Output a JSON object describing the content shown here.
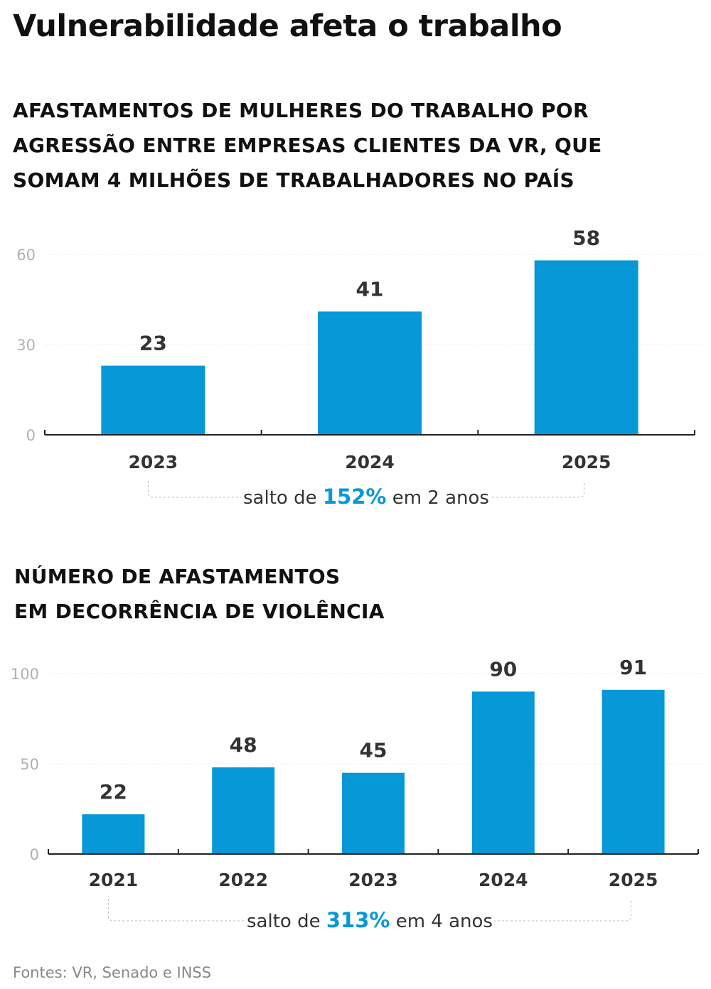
{
  "title": "Vulnerabilidade afeta o trabalho",
  "source": "Fontes: VR, Senado e INSS",
  "colors": {
    "bar": "#0798d8",
    "highlight": "#0798d8",
    "axis": "#222222",
    "tick_label": "#b0b0b0",
    "label": "#333333"
  },
  "chart_data": [
    {
      "type": "bar",
      "title_lines": [
        "AFASTAMENTOS DE MULHERES DO TRABALHO POR",
        "AGRESSÃO ENTRE EMPRESAS CLIENTES DA VR, QUE",
        "SOMAM 4 MILHÕES DE TRABALHADORES NO PAÍS"
      ],
      "categories": [
        "2023",
        "2024",
        "2025"
      ],
      "values": [
        23,
        41,
        58
      ],
      "ylim": [
        0,
        60
      ],
      "yticks": [
        0,
        30,
        60
      ],
      "grid": true,
      "annotation": {
        "prefix": "salto de ",
        "highlight": "152%",
        "suffix": " em 2 anos"
      }
    },
    {
      "type": "bar",
      "title_lines": [
        "NÚMERO DE AFASTAMENTOS",
        "EM DECORRÊNCIA DE VIOLÊNCIA"
      ],
      "categories": [
        "2021",
        "2022",
        "2023",
        "2024",
        "2025"
      ],
      "values": [
        22,
        48,
        45,
        90,
        91
      ],
      "ylim": [
        0,
        100
      ],
      "yticks": [
        0,
        50,
        100
      ],
      "grid": true,
      "annotation": {
        "prefix": "salto de ",
        "highlight": "313%",
        "suffix": " em 4 anos"
      }
    }
  ]
}
